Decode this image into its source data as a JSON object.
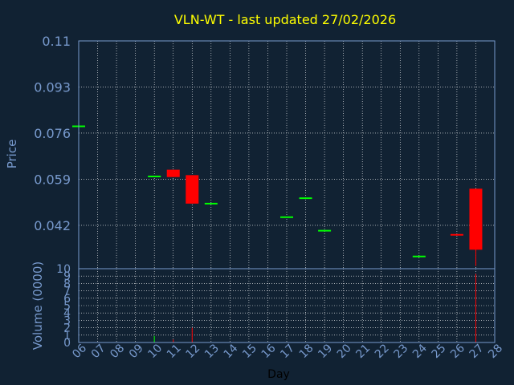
{
  "chart_data": {
    "type": "candlestick",
    "title": "VLN-WT - last updated 27/02/2026",
    "ylabel": "Price",
    "volume_label": "Volume (0000)",
    "xlabel": "Day",
    "y_ticks": [
      "0.11",
      "0.093",
      "0.076",
      "0.059",
      "0.042"
    ],
    "ylim": [
      0.026,
      0.11
    ],
    "volume_ticks": [
      "0",
      "1",
      "2",
      "3",
      "4",
      "5",
      "6",
      "7",
      "8",
      "9",
      "10"
    ],
    "volume_lim": [
      0,
      10
    ],
    "x_ticks": [
      "06",
      "07",
      "08",
      "09",
      "10",
      "11",
      "12",
      "13",
      "14",
      "15",
      "16",
      "17",
      "18",
      "19",
      "20",
      "21",
      "22",
      "23",
      "24",
      "25",
      "26",
      "27",
      "28"
    ],
    "grid": true,
    "colors": {
      "up": "#00ff00",
      "down": "#ff0000",
      "title": "#ffff00",
      "axis": "#7799cc",
      "background": "#112233",
      "grid": "#ffffff"
    },
    "candles": [
      {
        "day": "06",
        "open": 0.0785,
        "high": 0.0785,
        "low": 0.0785,
        "close": 0.0785,
        "dir": "up"
      },
      {
        "day": "10",
        "open": 0.06,
        "high": 0.06,
        "low": 0.06,
        "close": 0.06,
        "dir": "up"
      },
      {
        "day": "11",
        "open": 0.0625,
        "high": 0.0625,
        "low": 0.0598,
        "close": 0.0598,
        "dir": "down"
      },
      {
        "day": "12",
        "open": 0.0605,
        "high": 0.0605,
        "low": 0.05,
        "close": 0.05,
        "dir": "down"
      },
      {
        "day": "13",
        "open": 0.05,
        "high": 0.05,
        "low": 0.05,
        "close": 0.05,
        "dir": "up"
      },
      {
        "day": "17",
        "open": 0.045,
        "high": 0.045,
        "low": 0.045,
        "close": 0.045,
        "dir": "up"
      },
      {
        "day": "18",
        "open": 0.052,
        "high": 0.052,
        "low": 0.052,
        "close": 0.052,
        "dir": "up"
      },
      {
        "day": "19",
        "open": 0.04,
        "high": 0.04,
        "low": 0.04,
        "close": 0.04,
        "dir": "up"
      },
      {
        "day": "24",
        "open": 0.0305,
        "high": 0.0305,
        "low": 0.0305,
        "close": 0.0305,
        "dir": "up"
      },
      {
        "day": "26",
        "open": 0.0385,
        "high": 0.0385,
        "low": 0.0385,
        "close": 0.0385,
        "dir": "down"
      },
      {
        "day": "27",
        "open": 0.0555,
        "high": 0.0555,
        "low": 0.027,
        "close": 0.033,
        "dir": "down"
      }
    ],
    "volumes": [
      {
        "day": "10",
        "value": 0.9,
        "dir": "up"
      },
      {
        "day": "11",
        "value": 0.4,
        "dir": "down"
      },
      {
        "day": "12",
        "value": 2.0,
        "dir": "down"
      },
      {
        "day": "27",
        "value": 9.3,
        "dir": "down"
      }
    ]
  }
}
